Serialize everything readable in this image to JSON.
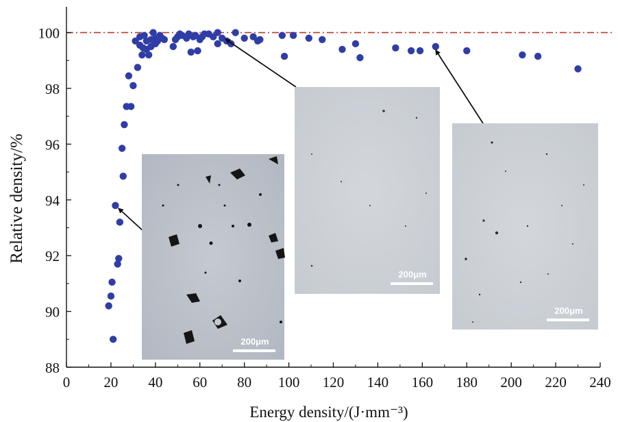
{
  "chart_data": {
    "type": "scatter",
    "xlabel": "Energy density/(J·mm⁻³)",
    "ylabel": "Relative density/%",
    "xlim": [
      0,
      240
    ],
    "ylim": [
      88,
      101
    ],
    "xticks": [
      0,
      20,
      40,
      60,
      80,
      100,
      120,
      140,
      160,
      180,
      200,
      220,
      240
    ],
    "yticks": [
      88,
      90,
      92,
      94,
      96,
      98,
      100
    ],
    "reference_line": {
      "y": 100,
      "style": "dash-dot",
      "color": "#c0392b"
    },
    "grid": false,
    "marker_color": "#2f3da6",
    "series": [
      {
        "x": [
          19,
          20,
          20.5,
          21,
          22,
          23,
          23.5,
          24,
          25,
          25.5,
          26,
          27,
          28,
          29,
          30,
          31,
          32,
          33,
          33,
          34,
          34.5,
          35,
          36,
          36,
          37,
          38,
          38,
          39,
          40,
          40,
          41,
          42,
          43,
          44,
          48,
          49,
          50,
          51,
          52,
          54,
          55,
          56,
          57,
          58,
          59,
          60,
          61,
          62,
          64,
          66,
          68,
          68,
          70,
          72,
          74,
          76,
          80,
          84,
          86,
          87,
          97,
          98,
          102,
          109,
          115,
          124,
          130,
          132,
          148,
          155,
          159,
          166,
          180,
          205,
          212,
          230
        ],
        "y": [
          90.2,
          90.55,
          91.05,
          89.0,
          93.8,
          91.7,
          91.9,
          93.2,
          95.85,
          94.85,
          96.7,
          97.35,
          98.45,
          97.35,
          98.1,
          99.7,
          98.75,
          99.55,
          99.85,
          99.2,
          99.45,
          99.9,
          99.7,
          99.4,
          99.2,
          99.75,
          99.5,
          100.0,
          99.8,
          99.6,
          99.7,
          99.9,
          99.8,
          99.75,
          99.5,
          99.75,
          99.85,
          99.95,
          99.9,
          99.8,
          99.95,
          99.3,
          99.85,
          99.9,
          99.35,
          99.75,
          99.85,
          99.95,
          99.95,
          99.85,
          100.0,
          99.6,
          99.8,
          99.7,
          99.6,
          100.0,
          99.8,
          99.85,
          99.7,
          99.75,
          99.9,
          99.15,
          99.9,
          99.8,
          99.75,
          99.4,
          99.6,
          99.1,
          99.45,
          99.35,
          99.35,
          99.5,
          99.35,
          99.2,
          99.15,
          98.7
        ]
      }
    ],
    "insets": [
      {
        "scale_bar": "200μm",
        "points_to": {
          "x": 22,
          "y": 93.8
        }
      },
      {
        "scale_bar": "200μm",
        "points_to": {
          "x": 70,
          "y": 99.85
        }
      },
      {
        "scale_bar": "200μm",
        "points_to": {
          "x": 165,
          "y": 99.5
        }
      }
    ]
  }
}
